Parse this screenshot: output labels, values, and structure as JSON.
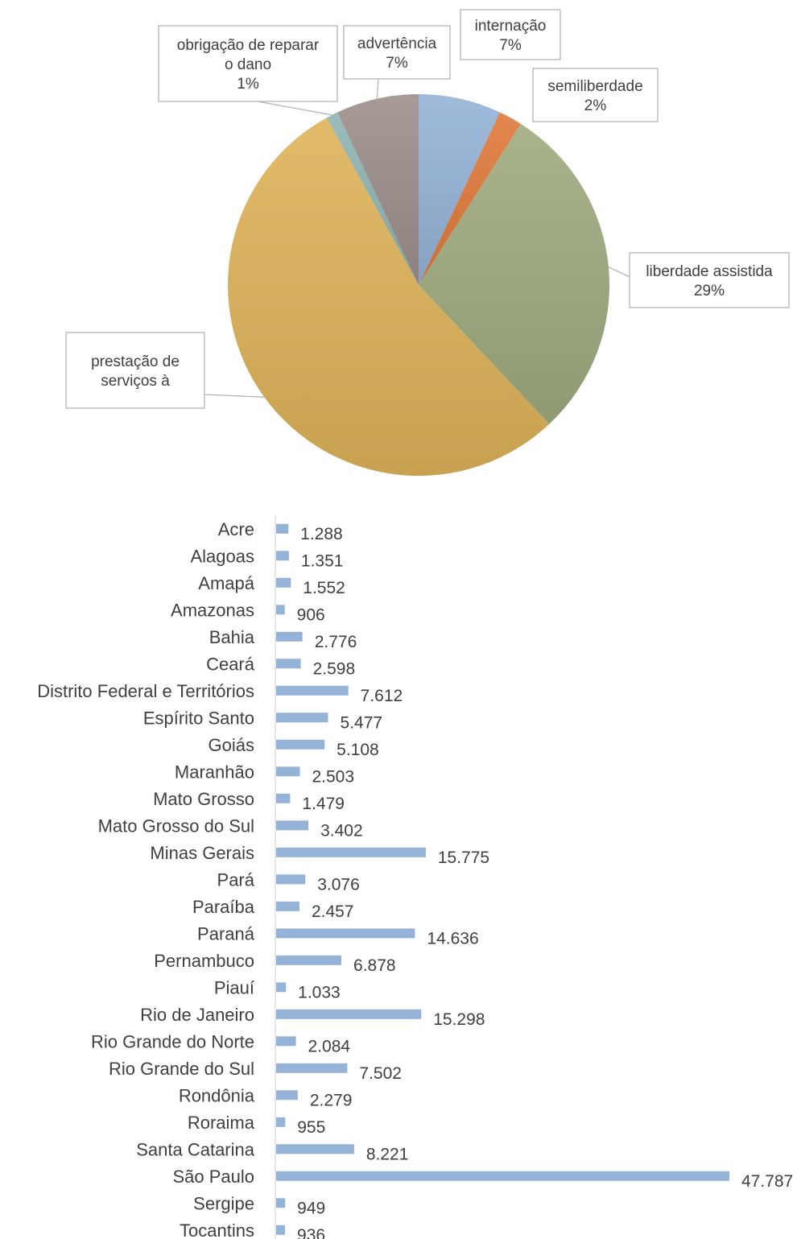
{
  "chart_data": [
    {
      "type": "pie",
      "title": "",
      "slices": [
        {
          "label": "internação",
          "percent_label": "7%",
          "value": 7,
          "color": "#95b3d7"
        },
        {
          "label": "semiliberdade",
          "percent_label": "2%",
          "value": 2,
          "color": "#e07a3c"
        },
        {
          "label": "liberdade assistida",
          "percent_label": "29%",
          "value": 29,
          "color": "#9fab80"
        },
        {
          "label": "prestação de serviços à",
          "percent_label": "",
          "value": 54,
          "color": "#deb35a"
        },
        {
          "label": "obrigação de reparar o dano",
          "percent_label": "1%",
          "value": 1,
          "color": "#8fb5b4"
        },
        {
          "label": "advertência",
          "percent_label": "7%",
          "value": 7,
          "color": "#9d8f8b"
        }
      ]
    },
    {
      "type": "bar",
      "orientation": "horizontal",
      "title": "",
      "bar_color": "#95b3d7",
      "categories": [
        "Acre",
        "Alagoas",
        "Amapá",
        "Amazonas",
        "Bahia",
        "Ceará",
        "Distrito Federal e Territórios",
        "Espírito Santo",
        "Goiás",
        "Maranhão",
        "Mato Grosso",
        "Mato Grosso do Sul",
        "Minas Gerais",
        "Pará",
        "Paraíba",
        "Paraná",
        "Pernambuco",
        "Piauí",
        "Rio de Janeiro",
        "Rio Grande do Norte",
        "Rio Grande do Sul",
        "Rondônia",
        "Roraima",
        "Santa Catarina",
        "São Paulo",
        "Sergipe",
        "Tocantins"
      ],
      "values": [
        1288,
        1351,
        1552,
        906,
        2776,
        2598,
        7612,
        5477,
        5108,
        2503,
        1479,
        3402,
        15775,
        3076,
        2457,
        14636,
        6878,
        1033,
        15298,
        2084,
        7502,
        2279,
        955,
        8221,
        47787,
        949,
        936
      ],
      "value_labels": [
        "1.288",
        "1.351",
        "1.552",
        "906",
        "2.776",
        "2.598",
        "7.612",
        "5.477",
        "5.108",
        "2.503",
        "1.479",
        "3.402",
        "15.775",
        "3.076",
        "2.457",
        "14.636",
        "6.878",
        "1.033",
        "15.298",
        "2.084",
        "7.502",
        "2.279",
        "955",
        "8.221",
        "47.787",
        "949",
        "936"
      ]
    }
  ]
}
